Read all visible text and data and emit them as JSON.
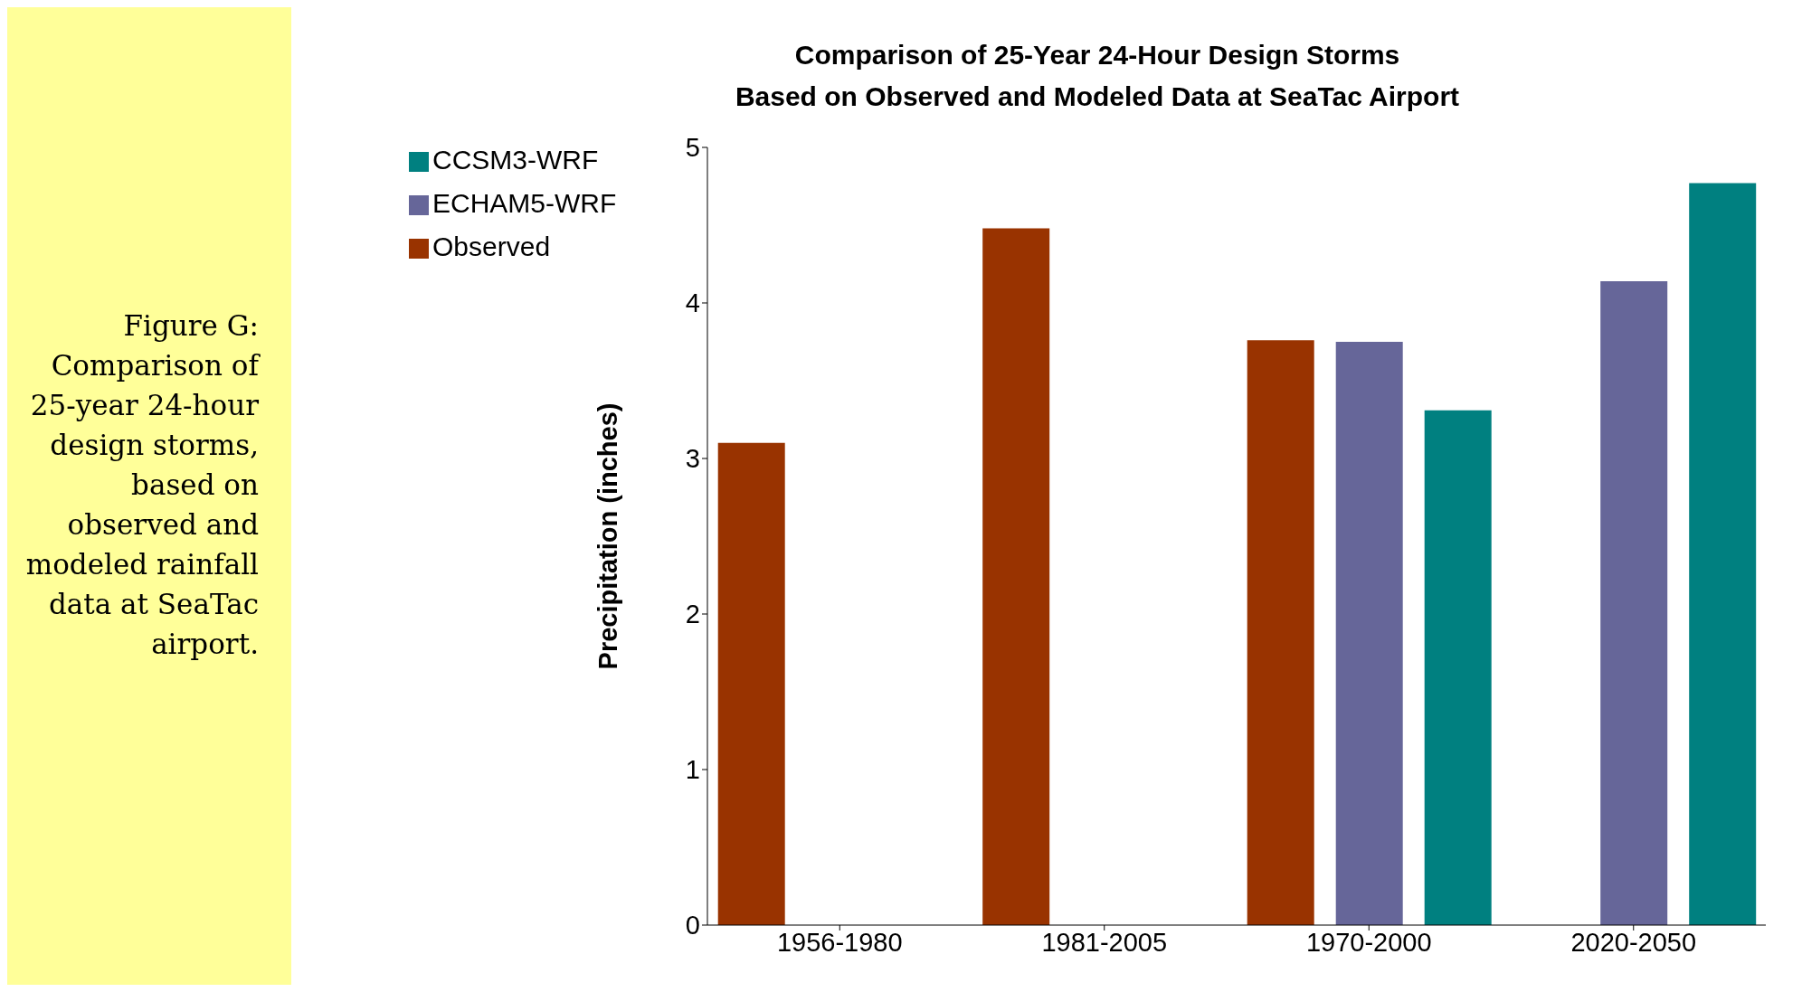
{
  "chart_data": {
    "type": "bar",
    "title": "Comparison of 25-Year 24-Hour Design Storms\nBased on Observed and Modeled Data at SeaTac Airport",
    "ylabel": "Precipitation (inches)",
    "annotations": [
      "Figure G: Comparison of 25-year 24-hour design storms, based on observed and modeled rainfall data at SeaTac airport."
    ],
    "categories": [
      "1956-1980",
      "1981-2005",
      "1970-2000",
      "2020-2050"
    ],
    "series": [
      {
        "name": "Observed",
        "color": "#993300",
        "values": [
          3.1,
          4.48,
          3.76,
          null
        ]
      },
      {
        "name": "ECHAM5-WRF",
        "color": "#666699",
        "values": [
          null,
          null,
          3.75,
          4.14
        ]
      },
      {
        "name": "CCSM3-WRF",
        "color": "#008080",
        "values": [
          null,
          null,
          3.31,
          4.77
        ]
      }
    ],
    "ylim": [
      0,
      5
    ],
    "yticks": [
      0,
      1,
      2,
      3,
      4,
      5
    ],
    "grid": false,
    "legend": "top left"
  }
}
